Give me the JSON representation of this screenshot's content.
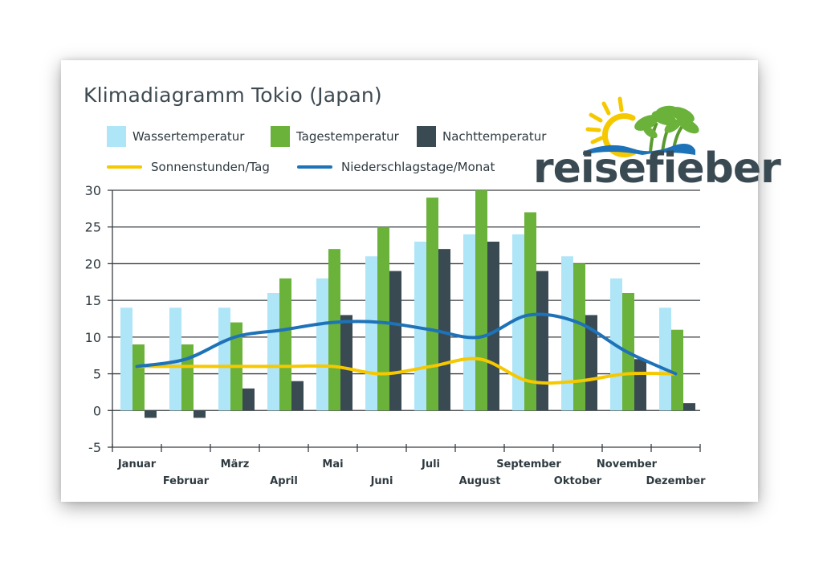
{
  "chart_data": {
    "type": "bar",
    "title": "Klimadiagramm Tokio (Japan)",
    "categories": [
      "Januar",
      "Februar",
      "März",
      "April",
      "Mai",
      "Juni",
      "Juli",
      "August",
      "September",
      "Oktober",
      "November",
      "Dezember"
    ],
    "ylim": [
      -5,
      30
    ],
    "yticks": [
      -5,
      0,
      5,
      10,
      15,
      20,
      25,
      30
    ],
    "ytick_labels": [
      "-5",
      "0",
      "5",
      "10",
      "15",
      "20",
      "25",
      "30"
    ],
    "grid": true,
    "legend_position": "top-left",
    "series": [
      {
        "name": "Wassertemperatur",
        "type": "bar",
        "color": "#aee5f7",
        "values": [
          14,
          14,
          14,
          16,
          18,
          21,
          23,
          24,
          24,
          21,
          18,
          14
        ]
      },
      {
        "name": "Tagestemperatur",
        "type": "bar",
        "color": "#6ab23a",
        "values": [
          9,
          9,
          12,
          18,
          22,
          25,
          29,
          30,
          27,
          20,
          16,
          11
        ]
      },
      {
        "name": "Nachttemperatur",
        "type": "bar",
        "color": "#3a4a52",
        "values": [
          -1,
          -1,
          3,
          4,
          13,
          19,
          22,
          23,
          19,
          13,
          7,
          1
        ]
      },
      {
        "name": "Sonnenstunden/Tag",
        "type": "line",
        "color": "#f5c800",
        "values": [
          6,
          6,
          6,
          6,
          6,
          5,
          6,
          7,
          4,
          4,
          5,
          5
        ]
      },
      {
        "name": "Niederschlagstage/Monat",
        "type": "line",
        "color": "#1e72b8",
        "values": [
          6,
          7,
          10,
          11,
          12,
          12,
          11,
          10,
          13,
          12,
          8,
          5
        ]
      }
    ]
  },
  "brand": {
    "logo_text": "reisefieber",
    "sun_color": "#f5c800",
    "palm_color": "#6ab23a",
    "wave_color": "#1e72b8",
    "text_color": "#3a4a52"
  }
}
